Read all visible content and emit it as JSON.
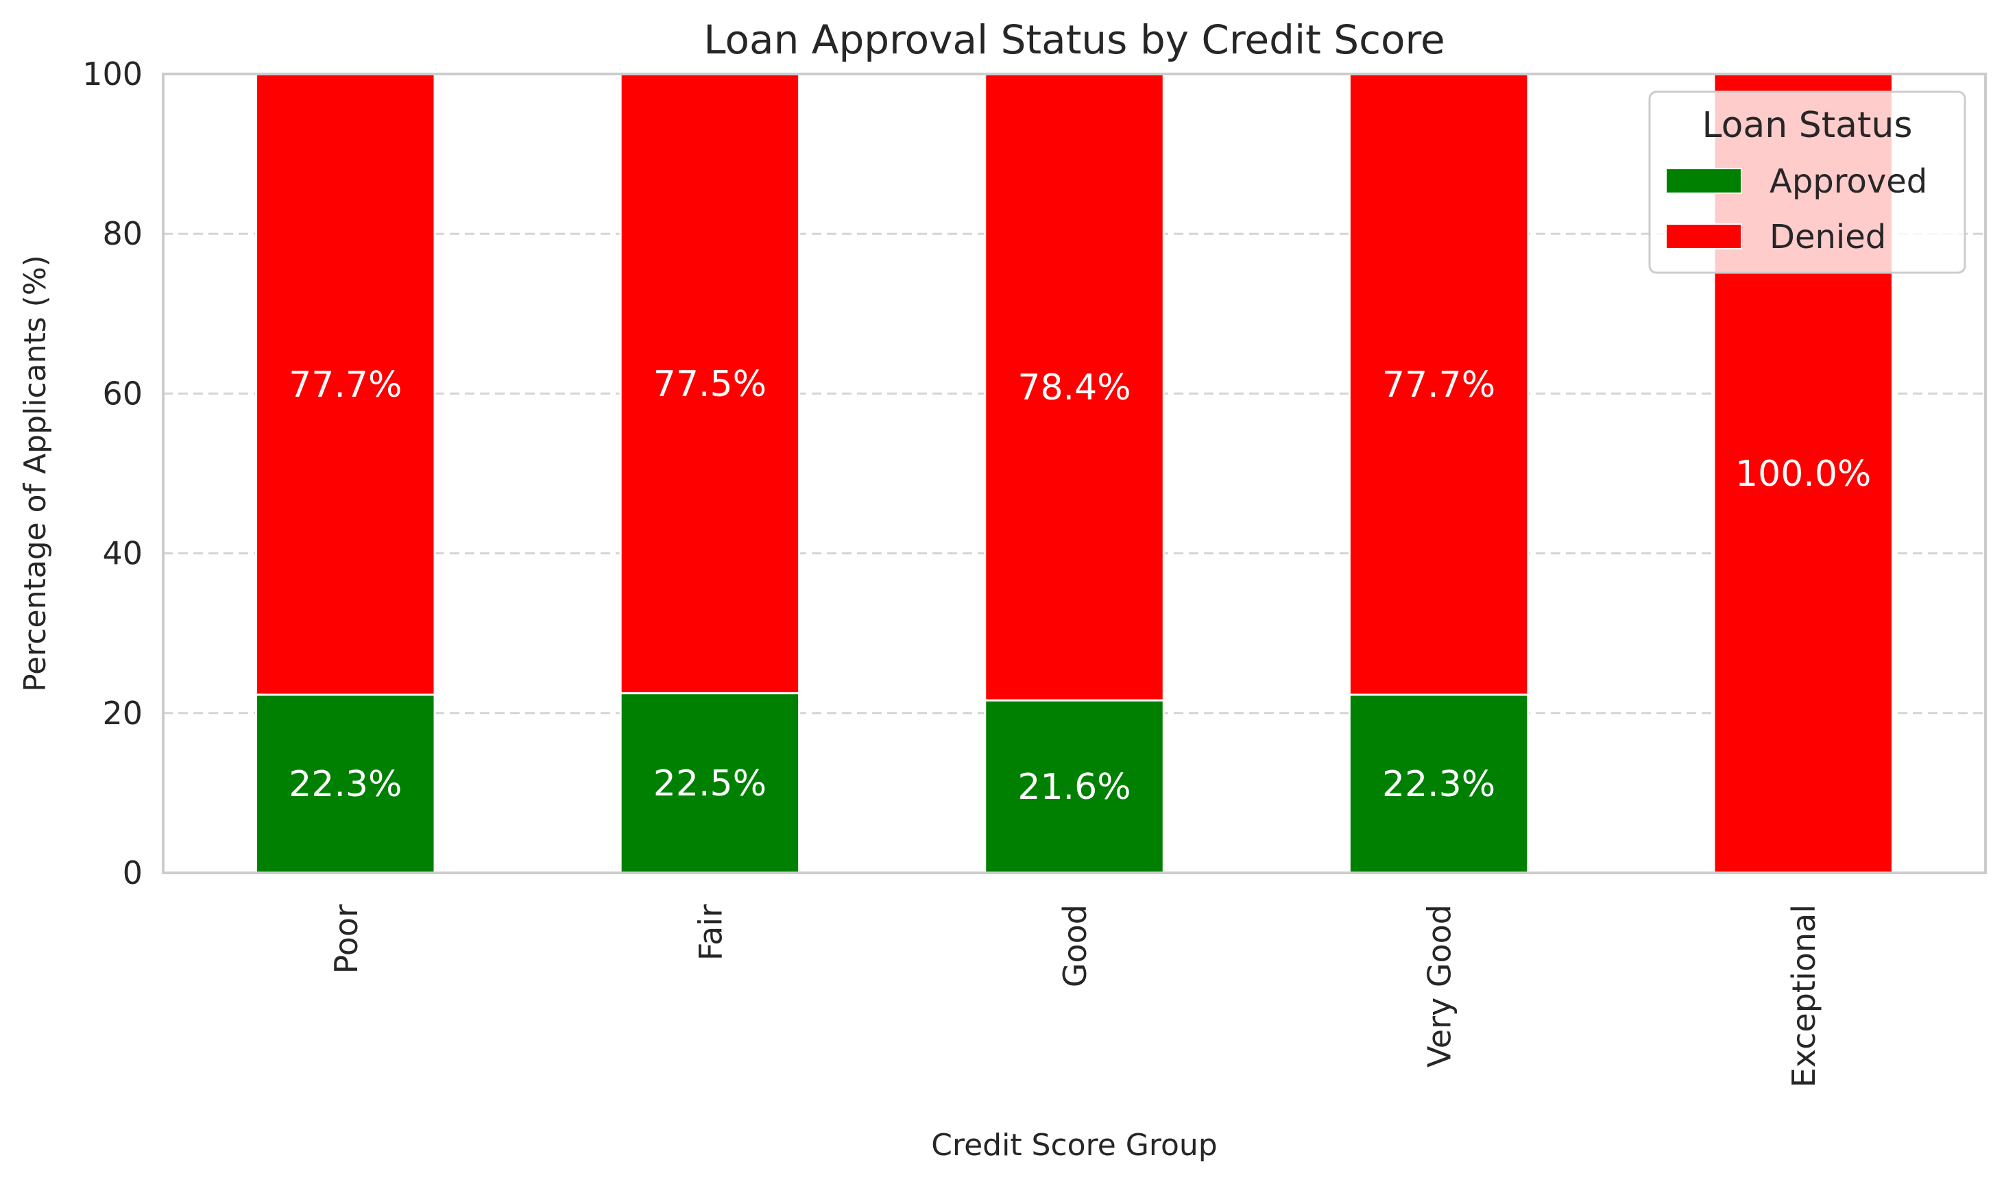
{
  "chart_data": {
    "type": "bar",
    "stacked": true,
    "title": "Loan Approval Status by Credit Score",
    "xlabel": "Credit Score Group",
    "ylabel": "Percentage of Applicants (%)",
    "ylim": [
      0,
      100
    ],
    "yticks": [
      0,
      20,
      40,
      60,
      80,
      100
    ],
    "grid": "horizontal dashed",
    "categories": [
      "Poor",
      "Fair",
      "Good",
      "Very Good",
      "Exceptional"
    ],
    "series": [
      {
        "name": "Approved",
        "color": "#008000",
        "values": [
          22.3,
          22.5,
          21.6,
          22.3,
          0.0
        ]
      },
      {
        "name": "Denied",
        "color": "#ff0000",
        "values": [
          77.7,
          77.5,
          78.4,
          77.7,
          100.0
        ]
      }
    ],
    "value_labels": [
      [
        "22.3%",
        "22.5%",
        "21.6%",
        "22.3%",
        ""
      ],
      [
        "77.7%",
        "77.5%",
        "78.4%",
        "77.7%",
        "100.0%"
      ]
    ],
    "legend": {
      "title": "Loan Status",
      "placement": "top-right"
    }
  }
}
